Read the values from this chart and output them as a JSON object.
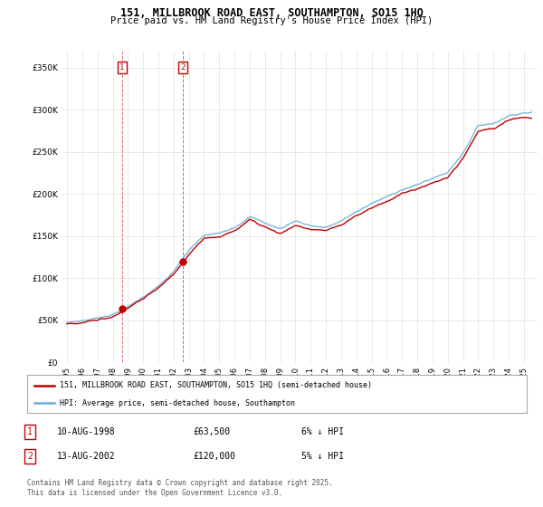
{
  "title": "151, MILLBROOK ROAD EAST, SOUTHAMPTON, SO15 1HQ",
  "subtitle": "Price paid vs. HM Land Registry's House Price Index (HPI)",
  "ytick_values": [
    0,
    50000,
    100000,
    150000,
    200000,
    250000,
    300000,
    350000
  ],
  "ylim": [
    0,
    370000
  ],
  "hpi_color": "#6baed6",
  "price_color": "#c00000",
  "sale1_x": 1998.61,
  "sale1_price": 63500,
  "sale2_x": 2002.62,
  "sale2_price": 120000,
  "legend_entry1": "151, MILLBROOK ROAD EAST, SOUTHAMPTON, SO15 1HQ (semi-detached house)",
  "legend_entry2": "HPI: Average price, semi-detached house, Southampton",
  "ann1_label": "1",
  "ann1_date": "10-AUG-1998",
  "ann1_price": "£63,500",
  "ann1_hpi": "6% ↓ HPI",
  "ann2_label": "2",
  "ann2_date": "13-AUG-2002",
  "ann2_price": "£120,000",
  "ann2_hpi": "5% ↓ HPI",
  "footer": "Contains HM Land Registry data © Crown copyright and database right 2025.\nThis data is licensed under the Open Government Licence v3.0.",
  "bg_color": "#ffffff",
  "grid_color": "#e0e0e0"
}
